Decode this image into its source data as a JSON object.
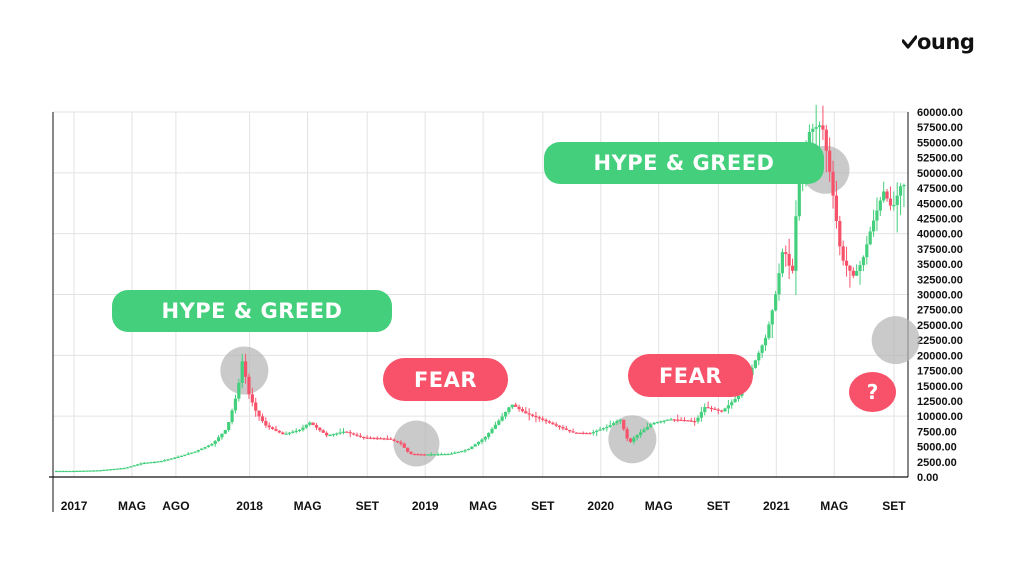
{
  "logo": {
    "text": "oung",
    "icon": "check-y-icon"
  },
  "annotations": {
    "hype_1": "HYPE & GREED",
    "hype_2": "HYPE & GREED",
    "fear_1": "FEAR",
    "fear_2": "FEAR",
    "question": "?"
  },
  "colors": {
    "up": "#43cf7c",
    "down": "#f7526a",
    "highlight": "#b5b5b5",
    "grid": "#e3e3e3"
  },
  "chart_data": {
    "type": "candlestick",
    "title": "",
    "xlabel": "",
    "ylabel": "",
    "ylim": [
      0,
      60000
    ],
    "y_ticks": [
      "0.00",
      "2500.00",
      "5000.00",
      "7500.00",
      "10000.00",
      "12500.00",
      "15000.00",
      "17500.00",
      "20000.00",
      "22500.00",
      "25000.00",
      "27500.00",
      "30000.00",
      "32500.00",
      "35000.00",
      "37500.00",
      "40000.00",
      "42500.00",
      "45000.00",
      "47500.00",
      "50000.00",
      "52500.00",
      "55000.00",
      "57500.00",
      "60000.00"
    ],
    "x_ticks": [
      {
        "label": "2017",
        "t": 2017.0
      },
      {
        "label": "MAG",
        "t": 2017.33
      },
      {
        "label": "AGO",
        "t": 2017.58
      },
      {
        "label": "2018",
        "t": 2018.0
      },
      {
        "label": "MAG",
        "t": 2018.33
      },
      {
        "label": "SET",
        "t": 2018.67
      },
      {
        "label": "2019",
        "t": 2019.0
      },
      {
        "label": "MAG",
        "t": 2019.33
      },
      {
        "label": "SET",
        "t": 2019.67
      },
      {
        "label": "2020",
        "t": 2020.0
      },
      {
        "label": "MAG",
        "t": 2020.33
      },
      {
        "label": "SET",
        "t": 2020.67
      },
      {
        "label": "2021",
        "t": 2021.0
      },
      {
        "label": "MAG",
        "t": 2021.33
      },
      {
        "label": "SET",
        "t": 2021.67
      }
    ],
    "x_range": [
      2016.88,
      2021.75
    ],
    "price_path": [
      [
        2016.9,
        1000
      ],
      [
        2017.0,
        1000
      ],
      [
        2017.15,
        1100
      ],
      [
        2017.3,
        1500
      ],
      [
        2017.4,
        2300
      ],
      [
        2017.5,
        2600
      ],
      [
        2017.6,
        3300
      ],
      [
        2017.7,
        4200
      ],
      [
        2017.8,
        5500
      ],
      [
        2017.88,
        8000
      ],
      [
        2017.94,
        14000
      ],
      [
        2017.97,
        19500
      ],
      [
        2018.0,
        14000
      ],
      [
        2018.05,
        10500
      ],
      [
        2018.1,
        8500
      ],
      [
        2018.2,
        7000
      ],
      [
        2018.3,
        7800
      ],
      [
        2018.35,
        9000
      ],
      [
        2018.45,
        6800
      ],
      [
        2018.55,
        7500
      ],
      [
        2018.65,
        6500
      ],
      [
        2018.8,
        6300
      ],
      [
        2018.87,
        5500
      ],
      [
        2018.92,
        3800
      ],
      [
        2019.0,
        3700
      ],
      [
        2019.15,
        3800
      ],
      [
        2019.25,
        4500
      ],
      [
        2019.35,
        6500
      ],
      [
        2019.45,
        10000
      ],
      [
        2019.5,
        12000
      ],
      [
        2019.58,
        10500
      ],
      [
        2019.67,
        9500
      ],
      [
        2019.75,
        8500
      ],
      [
        2019.85,
        7300
      ],
      [
        2019.95,
        7200
      ],
      [
        2020.05,
        8300
      ],
      [
        2020.12,
        9500
      ],
      [
        2020.17,
        5500
      ],
      [
        2020.2,
        6500
      ],
      [
        2020.3,
        8800
      ],
      [
        2020.4,
        9500
      ],
      [
        2020.5,
        9300
      ],
      [
        2020.55,
        9100
      ],
      [
        2020.6,
        11500
      ],
      [
        2020.7,
        10800
      ],
      [
        2020.8,
        13500
      ],
      [
        2020.88,
        18500
      ],
      [
        2020.95,
        23000
      ],
      [
        2021.0,
        29000
      ],
      [
        2021.05,
        38000
      ],
      [
        2021.1,
        33000
      ],
      [
        2021.13,
        47000
      ],
      [
        2021.2,
        57000
      ],
      [
        2021.27,
        58000
      ],
      [
        2021.32,
        49000
      ],
      [
        2021.38,
        36000
      ],
      [
        2021.45,
        33000
      ],
      [
        2021.5,
        35500
      ],
      [
        2021.55,
        41000
      ],
      [
        2021.62,
        47000
      ],
      [
        2021.67,
        44000
      ],
      [
        2021.72,
        48000
      ]
    ]
  }
}
